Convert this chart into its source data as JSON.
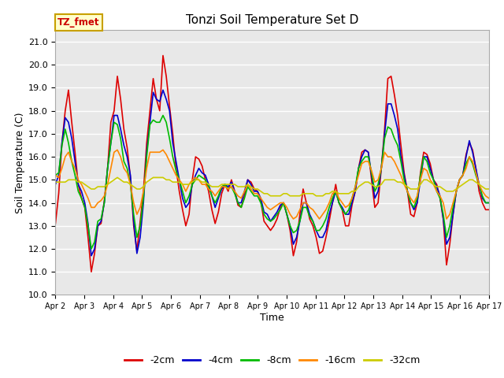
{
  "title": "Tonzi Soil Temperature Set D",
  "xlabel": "Time",
  "ylabel": "Soil Temperature (C)",
  "ylim": [
    10.0,
    21.5
  ],
  "yticks": [
    10.0,
    11.0,
    12.0,
    13.0,
    14.0,
    15.0,
    16.0,
    17.0,
    18.0,
    19.0,
    20.0,
    21.0
  ],
  "bg_color": "#e8e8e8",
  "annotation_label": "TZ_fmet",
  "annotation_bg": "#ffffcc",
  "annotation_border": "#c8a000",
  "series_colors": {
    "-2cm": "#dd0000",
    "-4cm": "#0000cc",
    "-8cm": "#00bb00",
    "-16cm": "#ff8800",
    "-32cm": "#cccc00"
  },
  "x_labels": [
    "Apr 2",
    "Apr 3",
    "Apr 4",
    "Apr 5",
    "Apr 6",
    "Apr 7",
    "Apr 8",
    "Apr 9",
    "Apr 10",
    "Apr 11",
    "Apr 12",
    "Apr 13",
    "Apr 14",
    "Apr 15",
    "Apr 16",
    "Apr 17"
  ],
  "data_2cm": [
    13.1,
    14.4,
    16.6,
    18.0,
    18.9,
    17.5,
    16.2,
    14.8,
    14.2,
    13.8,
    12.5,
    11.0,
    11.8,
    13.0,
    13.1,
    14.1,
    15.5,
    17.5,
    18.0,
    19.5,
    18.5,
    17.2,
    16.4,
    15.1,
    13.0,
    11.9,
    13.2,
    14.5,
    16.6,
    18.0,
    19.4,
    18.5,
    18.0,
    20.4,
    19.5,
    18.2,
    17.0,
    15.5,
    14.5,
    13.7,
    13.0,
    13.5,
    15.0,
    16.0,
    15.9,
    15.6,
    15.0,
    14.5,
    13.7,
    13.1,
    13.6,
    14.4,
    14.8,
    14.5,
    15.0,
    14.5,
    13.9,
    13.8,
    14.3,
    15.0,
    14.9,
    14.6,
    14.5,
    14.1,
    13.2,
    13.0,
    12.8,
    13.0,
    13.3,
    13.8,
    14.0,
    13.5,
    12.8,
    11.7,
    12.3,
    13.5,
    14.6,
    14.0,
    13.3,
    13.0,
    12.5,
    11.8,
    11.9,
    12.5,
    13.2,
    14.0,
    14.8,
    14.0,
    13.7,
    13.0,
    13.0,
    13.9,
    14.5,
    15.5,
    16.2,
    16.3,
    16.2,
    15.0,
    13.8,
    14.0,
    15.5,
    17.2,
    19.4,
    19.5,
    18.7,
    17.8,
    16.5,
    15.3,
    14.5,
    13.5,
    13.4,
    14.0,
    15.3,
    16.2,
    16.1,
    15.7,
    15.0,
    14.8,
    14.2,
    13.3,
    11.3,
    12.2,
    13.5,
    14.5,
    15.0,
    15.2,
    16.1,
    16.6,
    16.3,
    15.5,
    14.5,
    14.0,
    13.7,
    13.7
  ],
  "data_4cm": [
    14.8,
    15.2,
    16.6,
    17.7,
    17.5,
    16.8,
    15.8,
    14.8,
    14.5,
    14.0,
    13.1,
    11.7,
    12.0,
    13.0,
    13.2,
    14.0,
    15.5,
    16.6,
    17.8,
    17.8,
    17.2,
    16.5,
    16.0,
    15.2,
    13.2,
    11.8,
    12.5,
    14.0,
    16.2,
    17.5,
    18.8,
    18.5,
    18.4,
    18.9,
    18.5,
    18.0,
    16.6,
    15.8,
    15.0,
    14.2,
    13.8,
    14.0,
    14.8,
    15.2,
    15.5,
    15.3,
    15.2,
    14.8,
    14.3,
    13.8,
    14.2,
    14.6,
    14.8,
    14.7,
    14.9,
    14.5,
    14.0,
    14.0,
    14.5,
    15.0,
    14.8,
    14.5,
    14.5,
    14.2,
    13.6,
    13.5,
    13.2,
    13.4,
    13.6,
    13.9,
    14.0,
    13.5,
    13.0,
    12.2,
    12.5,
    13.2,
    14.0,
    14.0,
    13.5,
    13.2,
    12.8,
    12.5,
    12.5,
    12.8,
    13.5,
    14.0,
    14.5,
    14.0,
    13.8,
    13.5,
    13.5,
    14.0,
    14.5,
    15.5,
    16.0,
    16.3,
    16.2,
    15.2,
    14.2,
    14.5,
    15.5,
    17.0,
    18.3,
    18.3,
    17.8,
    17.2,
    16.0,
    15.2,
    14.5,
    14.0,
    13.7,
    14.0,
    15.0,
    16.0,
    16.0,
    15.5,
    15.0,
    14.7,
    14.3,
    13.3,
    12.2,
    12.5,
    13.5,
    14.5,
    15.0,
    15.2,
    16.0,
    16.7,
    16.2,
    15.5,
    14.8,
    14.2,
    14.0,
    14.0
  ],
  "data_8cm": [
    15.2,
    15.3,
    16.5,
    17.2,
    16.6,
    15.8,
    15.2,
    14.5,
    14.2,
    13.8,
    13.0,
    12.0,
    12.3,
    13.2,
    13.3,
    14.0,
    15.5,
    16.6,
    17.5,
    17.4,
    16.8,
    15.8,
    15.5,
    14.8,
    13.5,
    12.5,
    13.0,
    14.2,
    16.0,
    17.4,
    17.6,
    17.5,
    17.5,
    17.8,
    17.5,
    16.8,
    16.0,
    15.4,
    15.0,
    14.5,
    14.0,
    14.3,
    14.8,
    15.0,
    15.2,
    15.1,
    15.0,
    14.7,
    14.3,
    14.0,
    14.3,
    14.7,
    14.8,
    14.6,
    14.7,
    14.4,
    14.0,
    13.8,
    14.2,
    14.7,
    14.5,
    14.3,
    14.3,
    14.0,
    13.5,
    13.3,
    13.2,
    13.3,
    13.5,
    13.7,
    14.0,
    13.5,
    13.0,
    12.7,
    12.8,
    13.2,
    13.8,
    13.8,
    13.4,
    13.2,
    12.8,
    12.8,
    13.0,
    13.3,
    13.8,
    14.2,
    14.5,
    14.0,
    13.7,
    13.5,
    13.7,
    14.2,
    14.7,
    15.5,
    15.8,
    16.0,
    16.0,
    15.3,
    14.5,
    14.8,
    15.5,
    16.8,
    17.3,
    17.2,
    16.8,
    16.5,
    15.8,
    15.0,
    14.5,
    14.0,
    13.8,
    14.2,
    15.2,
    16.0,
    15.8,
    15.3,
    15.0,
    14.5,
    14.2,
    13.5,
    12.5,
    13.0,
    13.8,
    14.5,
    15.0,
    15.2,
    15.7,
    16.0,
    15.7,
    15.2,
    14.8,
    14.3,
    14.0,
    14.0
  ],
  "data_16cm": [
    15.2,
    15.1,
    15.5,
    16.0,
    16.2,
    15.8,
    15.5,
    15.0,
    14.8,
    14.5,
    14.2,
    13.8,
    13.8,
    14.0,
    14.1,
    14.3,
    14.8,
    15.5,
    16.2,
    16.3,
    16.0,
    15.5,
    15.3,
    14.8,
    14.0,
    13.5,
    13.8,
    14.5,
    15.5,
    16.2,
    16.2,
    16.2,
    16.2,
    16.3,
    16.1,
    15.8,
    15.5,
    15.2,
    15.0,
    14.8,
    14.5,
    14.8,
    15.0,
    15.1,
    15.0,
    14.8,
    14.8,
    14.6,
    14.5,
    14.3,
    14.5,
    14.7,
    14.7,
    14.6,
    14.7,
    14.5,
    14.3,
    14.2,
    14.5,
    14.8,
    14.6,
    14.4,
    14.4,
    14.2,
    14.0,
    13.8,
    13.7,
    13.8,
    13.9,
    14.0,
    14.0,
    13.8,
    13.5,
    13.3,
    13.4,
    13.7,
    14.0,
    14.0,
    13.8,
    13.7,
    13.5,
    13.3,
    13.5,
    13.7,
    14.0,
    14.4,
    14.5,
    14.2,
    14.0,
    13.8,
    13.9,
    14.2,
    14.7,
    15.2,
    15.7,
    15.8,
    15.8,
    15.4,
    14.9,
    15.0,
    15.5,
    16.2,
    16.0,
    16.0,
    15.8,
    15.5,
    15.2,
    14.8,
    14.5,
    14.2,
    14.0,
    14.3,
    15.0,
    15.5,
    15.4,
    15.0,
    14.8,
    14.5,
    14.3,
    14.0,
    13.3,
    13.5,
    14.0,
    14.5,
    15.0,
    15.2,
    15.5,
    16.0,
    15.8,
    15.3,
    14.8,
    14.5,
    14.3,
    14.2
  ],
  "data_32cm": [
    14.9,
    14.9,
    14.9,
    14.9,
    15.0,
    15.0,
    15.0,
    14.9,
    14.9,
    14.8,
    14.7,
    14.6,
    14.6,
    14.7,
    14.7,
    14.7,
    14.8,
    14.9,
    15.0,
    15.1,
    15.0,
    14.9,
    14.9,
    14.8,
    14.7,
    14.6,
    14.6,
    14.7,
    14.9,
    15.0,
    15.1,
    15.1,
    15.1,
    15.1,
    15.0,
    15.0,
    14.9,
    14.9,
    14.9,
    14.8,
    14.8,
    14.8,
    14.9,
    15.0,
    15.0,
    14.9,
    14.9,
    14.8,
    14.7,
    14.7,
    14.7,
    14.8,
    14.8,
    14.8,
    14.8,
    14.8,
    14.7,
    14.7,
    14.7,
    14.8,
    14.7,
    14.6,
    14.6,
    14.5,
    14.4,
    14.4,
    14.3,
    14.3,
    14.3,
    14.3,
    14.4,
    14.4,
    14.3,
    14.3,
    14.3,
    14.3,
    14.4,
    14.4,
    14.4,
    14.4,
    14.3,
    14.3,
    14.3,
    14.4,
    14.4,
    14.5,
    14.5,
    14.4,
    14.4,
    14.4,
    14.4,
    14.5,
    14.5,
    14.7,
    14.8,
    14.9,
    14.9,
    14.8,
    14.7,
    14.7,
    14.8,
    15.0,
    15.0,
    15.0,
    15.0,
    14.9,
    14.9,
    14.8,
    14.7,
    14.6,
    14.6,
    14.6,
    14.8,
    15.0,
    15.0,
    14.9,
    14.8,
    14.7,
    14.7,
    14.6,
    14.5,
    14.5,
    14.5,
    14.6,
    14.7,
    14.8,
    14.9,
    15.0,
    15.0,
    14.9,
    14.8,
    14.7,
    14.6,
    14.6
  ]
}
